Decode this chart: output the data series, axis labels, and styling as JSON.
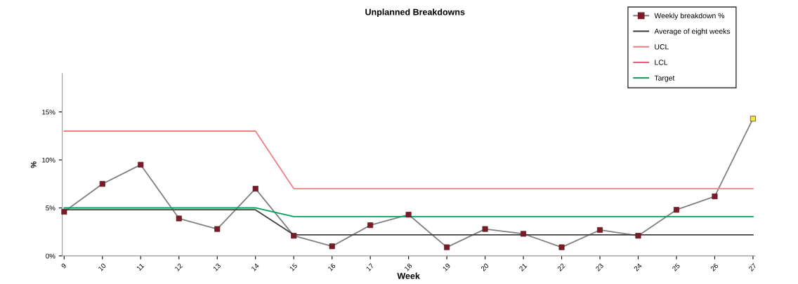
{
  "chart_data": {
    "type": "line",
    "title": "Unplanned Breakdowns",
    "xlabel": "Week",
    "ylabel": "%",
    "categories": [
      "9",
      "10",
      "11",
      "12",
      "13",
      "14",
      "15",
      "16",
      "17",
      "18",
      "19",
      "20",
      "21",
      "22",
      "23",
      "24",
      "25",
      "26",
      "27"
    ],
    "series": [
      {
        "name": "Weekly breakdown %",
        "color": "#808080",
        "marker": "square",
        "colors": [
          "#7b1b2a",
          "#7b1b2a",
          "#7b1b2a",
          "#7b1b2a",
          "#7b1b2a",
          "#7b1b2a",
          "#7b1b2a",
          "#7b1b2a",
          "#7b1b2a",
          "#7b1b2a",
          "#7b1b2a",
          "#7b1b2a",
          "#7b1b2a",
          "#7b1b2a",
          "#7b1b2a",
          "#7b1b2a",
          "#7b1b2a",
          "#7b1b2a",
          "#e8e840"
        ],
        "values": [
          4.6,
          7.5,
          9.5,
          3.9,
          2.8,
          7.0,
          2.1,
          1.0,
          3.2,
          4.3,
          0.9,
          2.8,
          2.3,
          0.9,
          2.7,
          2.1,
          4.8,
          6.2,
          14.3
        ]
      },
      {
        "name": "Average of eight weeks",
        "color": "#404040",
        "values": [
          4.8,
          4.8,
          4.8,
          4.8,
          4.8,
          4.8,
          2.2,
          2.2,
          2.2,
          2.2,
          2.2,
          2.2,
          2.2,
          2.2,
          2.2,
          2.2,
          2.2,
          2.2,
          2.2
        ]
      },
      {
        "name": "UCL",
        "color": "#f08080",
        "values": [
          13,
          13,
          13,
          13,
          13,
          13,
          7.0,
          7.0,
          7.0,
          7.0,
          7.0,
          7.0,
          7.0,
          7.0,
          7.0,
          7.0,
          7.0,
          7.0,
          7.0
        ]
      },
      {
        "name": "LCL",
        "color": "#e06080",
        "values": [
          null,
          null,
          null,
          null,
          null,
          null,
          null,
          null,
          null,
          null,
          null,
          null,
          null,
          null,
          null,
          null,
          null,
          null,
          null
        ]
      },
      {
        "name": "Target",
        "color": "#00a060",
        "values": [
          5.0,
          5.0,
          5.0,
          5.0,
          5.0,
          5.0,
          4.1,
          4.1,
          4.1,
          4.1,
          4.1,
          4.1,
          4.1,
          4.1,
          4.1,
          4.1,
          4.1,
          4.1,
          4.1
        ]
      }
    ],
    "ylim": [
      0,
      19
    ],
    "yticks": [
      {
        "value": 0,
        "label": "0%"
      },
      {
        "value": 5,
        "label": "5%"
      },
      {
        "value": 10,
        "label": "10%"
      },
      {
        "value": 15,
        "label": "15%"
      }
    ],
    "grid": false,
    "legend": "top right"
  }
}
